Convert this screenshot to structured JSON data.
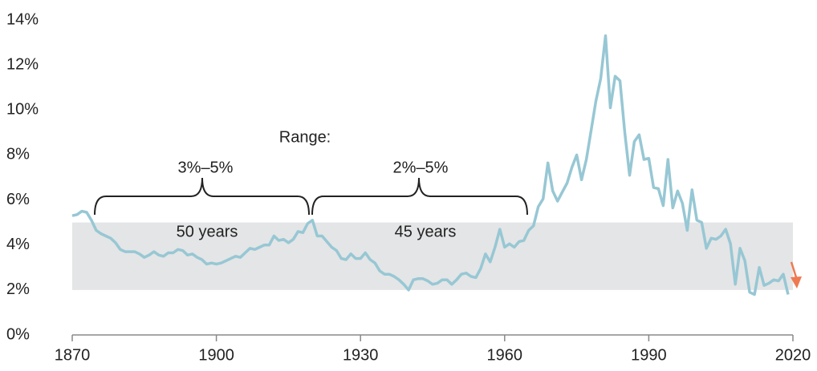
{
  "chart_data": {
    "type": "line",
    "annotations": [
      "Range:",
      "3%–5%",
      "2%–5%",
      "50 years",
      "45 years"
    ],
    "shaded_range": [
      2,
      5
    ],
    "x": [
      1870,
      1871,
      1872,
      1873,
      1874,
      1875,
      1876,
      1877,
      1878,
      1879,
      1880,
      1881,
      1882,
      1883,
      1884,
      1885,
      1886,
      1887,
      1888,
      1889,
      1890,
      1891,
      1892,
      1893,
      1894,
      1895,
      1896,
      1897,
      1898,
      1899,
      1900,
      1901,
      1902,
      1903,
      1904,
      1905,
      1906,
      1907,
      1908,
      1909,
      1910,
      1911,
      1912,
      1913,
      1914,
      1915,
      1916,
      1917,
      1918,
      1919,
      1920,
      1921,
      1922,
      1923,
      1924,
      1925,
      1926,
      1927,
      1928,
      1929,
      1930,
      1931,
      1932,
      1933,
      1934,
      1935,
      1936,
      1937,
      1938,
      1939,
      1940,
      1941,
      1942,
      1943,
      1944,
      1945,
      1946,
      1947,
      1948,
      1949,
      1950,
      1951,
      1952,
      1953,
      1954,
      1955,
      1956,
      1957,
      1958,
      1959,
      1960,
      1961,
      1962,
      1963,
      1964,
      1965,
      1966,
      1967,
      1968,
      1969,
      1970,
      1971,
      1972,
      1973,
      1974,
      1975,
      1976,
      1977,
      1978,
      1979,
      1980,
      1981,
      1982,
      1983,
      1984,
      1985,
      1986,
      1987,
      1988,
      1989,
      1990,
      1991,
      1992,
      1993,
      1994,
      1995,
      1996,
      1997,
      1998,
      1999,
      2000,
      2001,
      2002,
      2003,
      2004,
      2005,
      2006,
      2007,
      2008,
      2009,
      2010,
      2011,
      2012,
      2013,
      2014,
      2015,
      2016,
      2017,
      2018,
      2019
    ],
    "series": [
      {
        "color": "#97c7d4",
        "values": [
          5.3,
          5.35,
          5.5,
          5.45,
          5.1,
          4.65,
          4.5,
          4.4,
          4.3,
          4.1,
          3.8,
          3.7,
          3.7,
          3.7,
          3.6,
          3.45,
          3.55,
          3.7,
          3.55,
          3.5,
          3.65,
          3.65,
          3.8,
          3.75,
          3.55,
          3.6,
          3.45,
          3.35,
          3.15,
          3.2,
          3.15,
          3.2,
          3.3,
          3.4,
          3.5,
          3.45,
          3.65,
          3.85,
          3.8,
          3.9,
          4.0,
          4.0,
          4.4,
          4.2,
          4.25,
          4.1,
          4.25,
          4.6,
          4.55,
          4.95,
          5.1,
          4.4,
          4.4,
          4.15,
          3.9,
          3.75,
          3.4,
          3.35,
          3.6,
          3.4,
          3.4,
          3.65,
          3.35,
          3.2,
          2.85,
          2.7,
          2.7,
          2.6,
          2.45,
          2.25,
          2.0,
          2.45,
          2.5,
          2.5,
          2.4,
          2.25,
          2.3,
          2.45,
          2.45,
          2.25,
          2.45,
          2.7,
          2.75,
          2.6,
          2.55,
          2.95,
          3.6,
          3.25,
          3.9,
          4.7,
          3.9,
          4.05,
          3.9,
          4.15,
          4.2,
          4.65,
          4.85,
          5.7,
          6.05,
          7.65,
          6.4,
          5.95,
          6.35,
          6.75,
          7.45,
          8.0,
          6.9,
          7.8,
          9.1,
          10.4,
          11.4,
          13.3,
          10.1,
          11.5,
          11.3,
          9.0,
          7.1,
          8.6,
          8.9,
          7.8,
          7.85,
          6.55,
          6.5,
          5.75,
          7.8,
          5.65,
          6.4,
          5.85,
          4.65,
          6.45,
          5.1,
          5.0,
          3.85,
          4.3,
          4.25,
          4.4,
          4.7,
          4.05,
          2.25,
          3.85,
          3.3,
          1.9,
          1.8,
          3.0,
          2.2,
          2.3,
          2.45,
          2.4,
          2.7,
          1.8
        ]
      }
    ],
    "xlim": [
      1870,
      2020
    ],
    "xticks": [
      1870,
      1900,
      1930,
      1960,
      1990,
      2020
    ],
    "ylim": [
      0,
      14
    ],
    "yticks": [
      {
        "value": 0,
        "label": "0%"
      },
      {
        "value": 2,
        "label": "2%"
      },
      {
        "value": 4,
        "label": "4%"
      },
      {
        "value": 6,
        "label": "6%"
      },
      {
        "value": 8,
        "label": "8%"
      },
      {
        "value": 10,
        "label": "10%"
      },
      {
        "value": 12,
        "label": "12%"
      },
      {
        "value": 14,
        "label": "14%"
      }
    ]
  }
}
